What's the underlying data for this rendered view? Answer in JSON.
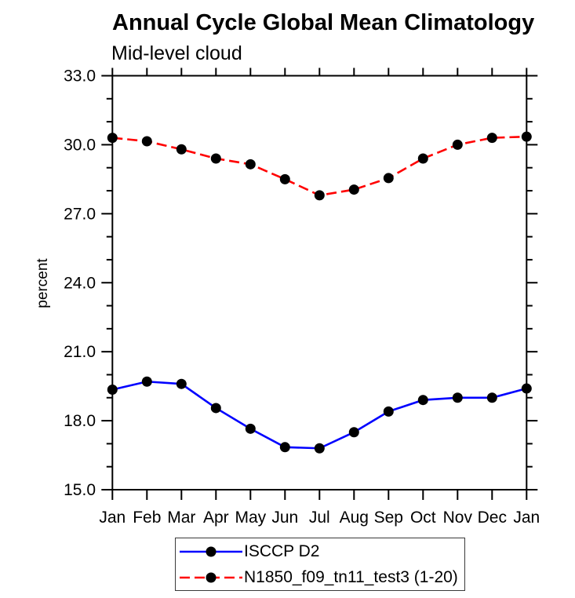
{
  "chart_data": {
    "type": "line",
    "title": "Annual Cycle Global Mean Climatology",
    "subtitle": "Mid-level cloud",
    "ylabel": "percent",
    "categories": [
      "Jan",
      "Feb",
      "Mar",
      "Apr",
      "May",
      "Jun",
      "Jul",
      "Aug",
      "Sep",
      "Oct",
      "Nov",
      "Dec",
      "Jan"
    ],
    "ylim": [
      15.0,
      33.0
    ],
    "ytick_labels": [
      "15.0",
      "18.0",
      "21.0",
      "24.0",
      "27.0",
      "30.0",
      "33.0"
    ],
    "ytick_minor_step": 1.0,
    "grid": false,
    "legend_position": "bottom",
    "axis_color": "#000000",
    "marker_color": "#000000",
    "series": [
      {
        "name": "ISCCP D2",
        "color": "#0000ff",
        "style": "solid",
        "values": [
          19.35,
          19.7,
          19.6,
          18.55,
          17.65,
          16.85,
          16.8,
          17.5,
          18.4,
          18.9,
          19.0,
          19.0,
          19.4
        ]
      },
      {
        "name": "N1850_f09_tn11_test3 (1-20)",
        "color": "#ff0000",
        "style": "dashed",
        "values": [
          30.3,
          30.15,
          29.8,
          29.4,
          29.15,
          28.5,
          27.8,
          28.05,
          28.55,
          29.4,
          30.0,
          30.3,
          30.35
        ]
      }
    ]
  }
}
